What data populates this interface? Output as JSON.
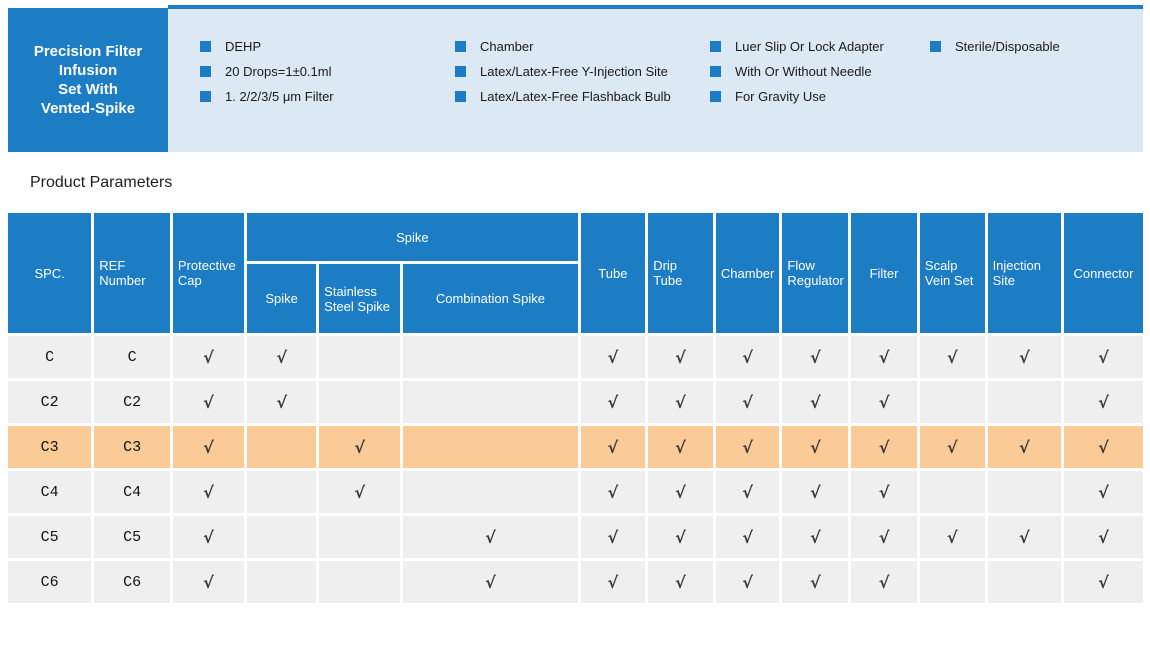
{
  "banner": {
    "title_lines": [
      "Precision Filter",
      "Infusion",
      "Set With",
      "Vented-Spike"
    ],
    "feature_columns": [
      {
        "items": [
          "DEHP",
          "20 Drops=1±0.1ml",
          "1. 2/2/3/5 μm Filter"
        ]
      },
      {
        "items": [
          "Chamber",
          "Latex/Latex-Free Y-Injection Site",
          "Latex/Latex-Free Flashback Bulb"
        ]
      },
      {
        "items": [
          "Luer Slip Or Lock Adapter",
          "With Or Without Needle",
          "For Gravity Use"
        ]
      },
      {
        "items": [
          "Sterile/Disposable"
        ]
      }
    ]
  },
  "section": {
    "title": "Product Parameters"
  },
  "symbols": {
    "check": "√",
    "bullet": "square-bullet"
  },
  "colors": {
    "brand_blue": "#1C7CC4",
    "panel_blue": "#DCE8F4",
    "row_gray": "#EFEFEF",
    "highlight_orange": "#FBCB97"
  },
  "table": {
    "header": {
      "spc": "SPC.",
      "ref_number": "REF Number",
      "protective_cap": "Protective Cap",
      "spike_group": "Spike",
      "spike": "Spike",
      "stainless_steel_spike": "Stainless Steel Spike",
      "combination_spike": "Combination Spike",
      "tube": "Tube",
      "drip_tube": "Drip Tube",
      "chamber": "Chamber",
      "flow_regulator": "Flow Regulator",
      "filter": "Filter",
      "scalp_vein_set": "Scalp Vein Set",
      "injection_site": "Injection Site",
      "connector": "Connector"
    },
    "check_columns": [
      "protective-cap",
      "spike",
      "stainless-steel-spike",
      "combination-spike",
      "tube",
      "drip-tube",
      "chamber",
      "flow-regulator",
      "filter",
      "scalp-vein-set",
      "injection-site",
      "connector"
    ],
    "rows": [
      {
        "spc": "C",
        "ref": "C",
        "highlight": false,
        "checks": [
          1,
          1,
          0,
          0,
          1,
          1,
          1,
          1,
          1,
          1,
          1,
          1
        ]
      },
      {
        "spc": "C2",
        "ref": "C2",
        "highlight": false,
        "checks": [
          1,
          1,
          0,
          0,
          1,
          1,
          1,
          1,
          1,
          0,
          0,
          1
        ]
      },
      {
        "spc": "C3",
        "ref": "C3",
        "highlight": true,
        "checks": [
          1,
          0,
          1,
          0,
          1,
          1,
          1,
          1,
          1,
          1,
          1,
          1
        ]
      },
      {
        "spc": "C4",
        "ref": "C4",
        "highlight": false,
        "checks": [
          1,
          0,
          1,
          0,
          1,
          1,
          1,
          1,
          1,
          0,
          0,
          1
        ]
      },
      {
        "spc": "C5",
        "ref": "C5",
        "highlight": false,
        "checks": [
          1,
          0,
          0,
          1,
          1,
          1,
          1,
          1,
          1,
          1,
          1,
          1
        ]
      },
      {
        "spc": "C6",
        "ref": "C6",
        "highlight": false,
        "checks": [
          1,
          0,
          0,
          1,
          1,
          1,
          1,
          1,
          1,
          0,
          0,
          1
        ]
      }
    ]
  }
}
